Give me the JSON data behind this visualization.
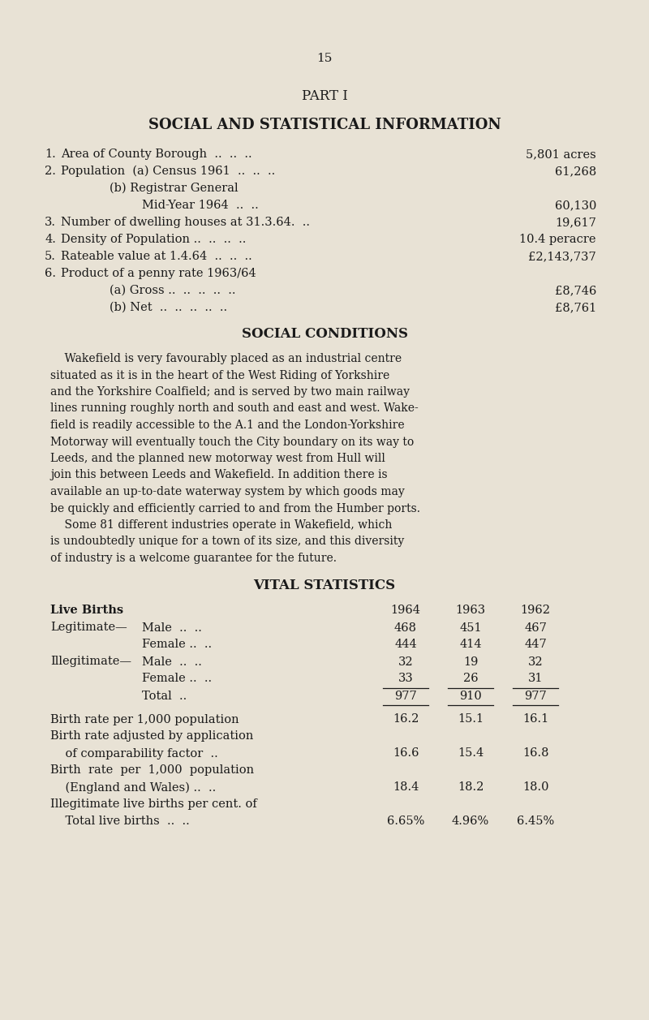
{
  "bg_color": "#e8e2d5",
  "text_color": "#1a1a1a",
  "page_number": "15",
  "part_heading": "PART I",
  "main_heading": "SOCIAL AND STATISTICAL INFORMATION",
  "stat_items": [
    {
      "num": "1.",
      "label": "Area of County Borough  ..  ..  ..",
      "value": "5,801 acres",
      "indent": 0
    },
    {
      "num": "2.",
      "label": "Population  (a) Census 1961  ..  ..  ..",
      "value": "61,268",
      "indent": 0
    },
    {
      "num": "",
      "label": "(b) Registrar General",
      "value": "",
      "indent": 1
    },
    {
      "num": "",
      "label": "Mid-Year 1964  ..  ..",
      "value": "60,130",
      "indent": 2
    },
    {
      "num": "3.",
      "label": "Number of dwelling houses at 31.3.64.  ..",
      "value": "19,617",
      "indent": 0
    },
    {
      "num": "4.",
      "label": "Density of Population ..  ..  ..  ..",
      "value": "10.4 peracre",
      "indent": 0
    },
    {
      "num": "5.",
      "label": "Rateable value at 1.4.64  ..  ..  ..",
      "value": "£2,143,737",
      "indent": 0
    },
    {
      "num": "6.",
      "label": "Product of a penny rate 1963/64",
      "value": "",
      "indent": 0
    },
    {
      "num": "",
      "label": "(a) Gross ..  ..  ..  ..  ..",
      "value": "£8,746",
      "indent": 1
    },
    {
      "num": "",
      "label": "(b) Net  ..  ..  ..  ..  ..",
      "value": "£8,761",
      "indent": 1
    }
  ],
  "social_heading": "SOCIAL CONDITIONS",
  "para1_lines": [
    "    Wakefield is very favourably placed as an industrial centre",
    "situated as it is in the heart of the West Riding of Yorkshire",
    "and the Yorkshire Coalfield; and is served by two main railway",
    "lines running roughly north and south and east and west. Wake-",
    "field is readily accessible to the A.1 and the London-Yorkshire",
    "Motorway will eventually touch the City boundary on its way to",
    "Leeds, and the planned new motorway west from Hull will",
    "join this between Leeds and Wakefield. In addition there is",
    "available an up-to-date waterway system by which goods may",
    "be quickly and efficiently carried to and from the Humber ports."
  ],
  "para2_lines": [
    "    Some 81 different industries operate in Wakefield, which",
    "is undoubtedly unique for a town of its size, and this diversity",
    "of industry is a welcome guarantee for the future."
  ],
  "vital_heading": "VITAL STATISTICS",
  "vital_rows": [
    {
      "label": "Live Births",
      "sub": "",
      "v1964": "",
      "v1963": "",
      "v1962": "",
      "bold": true,
      "line_before": false,
      "line_after": false,
      "extra_space_after": false
    },
    {
      "label": "Legitimate—",
      "sub": "Male  ..  ..",
      "v1964": "468",
      "v1963": "451",
      "v1962": "467",
      "bold": false,
      "line_before": false,
      "line_after": false,
      "extra_space_after": false
    },
    {
      "label": "",
      "sub": "Female ..  ..",
      "v1964": "444",
      "v1963": "414",
      "v1962": "447",
      "bold": false,
      "line_before": false,
      "line_after": false,
      "extra_space_after": false
    },
    {
      "label": "Illegitimate—",
      "sub": "Male  ..  ..",
      "v1964": "32",
      "v1963": "19",
      "v1962": "32",
      "bold": false,
      "line_before": false,
      "line_after": false,
      "extra_space_after": false
    },
    {
      "label": "",
      "sub": "Female ..  ..",
      "v1964": "33",
      "v1963": "26",
      "v1962": "31",
      "bold": false,
      "line_before": false,
      "line_after": true,
      "extra_space_after": false
    },
    {
      "label": "",
      "sub": "Total  ..",
      "v1964": "977",
      "v1963": "910",
      "v1962": "977",
      "bold": false,
      "line_before": false,
      "line_after": true,
      "extra_space_after": true
    },
    {
      "label": "Birth rate per 1,000 population",
      "sub": "",
      "v1964": "16.2",
      "v1963": "15.1",
      "v1962": "16.1",
      "bold": false,
      "line_before": false,
      "line_after": false,
      "extra_space_after": false
    },
    {
      "label": "Birth rate adjusted by application",
      "sub": "",
      "v1964": "",
      "v1963": "",
      "v1962": "",
      "bold": false,
      "line_before": false,
      "line_after": false,
      "extra_space_after": false
    },
    {
      "label": "    of comparability factor  ..",
      "sub": "",
      "v1964": "16.6",
      "v1963": "15.4",
      "v1962": "16.8",
      "bold": false,
      "line_before": false,
      "line_after": false,
      "extra_space_after": false
    },
    {
      "label": "Birth  rate  per  1,000  population",
      "sub": "",
      "v1964": "",
      "v1963": "",
      "v1962": "",
      "bold": false,
      "line_before": false,
      "line_after": false,
      "extra_space_after": false
    },
    {
      "label": "    (England and Wales) ..  ..",
      "sub": "",
      "v1964": "18.4",
      "v1963": "18.2",
      "v1962": "18.0",
      "bold": false,
      "line_before": false,
      "line_after": false,
      "extra_space_after": false
    },
    {
      "label": "Illegitimate live births per cent. of",
      "sub": "",
      "v1964": "",
      "v1963": "",
      "v1962": "",
      "bold": false,
      "line_before": false,
      "line_after": false,
      "extra_space_after": false
    },
    {
      "label": "    Total live births  ..  ..",
      "sub": "",
      "v1964": "6.65%",
      "v1963": "4.96%",
      "v1962": "6.45%",
      "bold": false,
      "line_before": false,
      "line_after": false,
      "extra_space_after": false
    }
  ]
}
